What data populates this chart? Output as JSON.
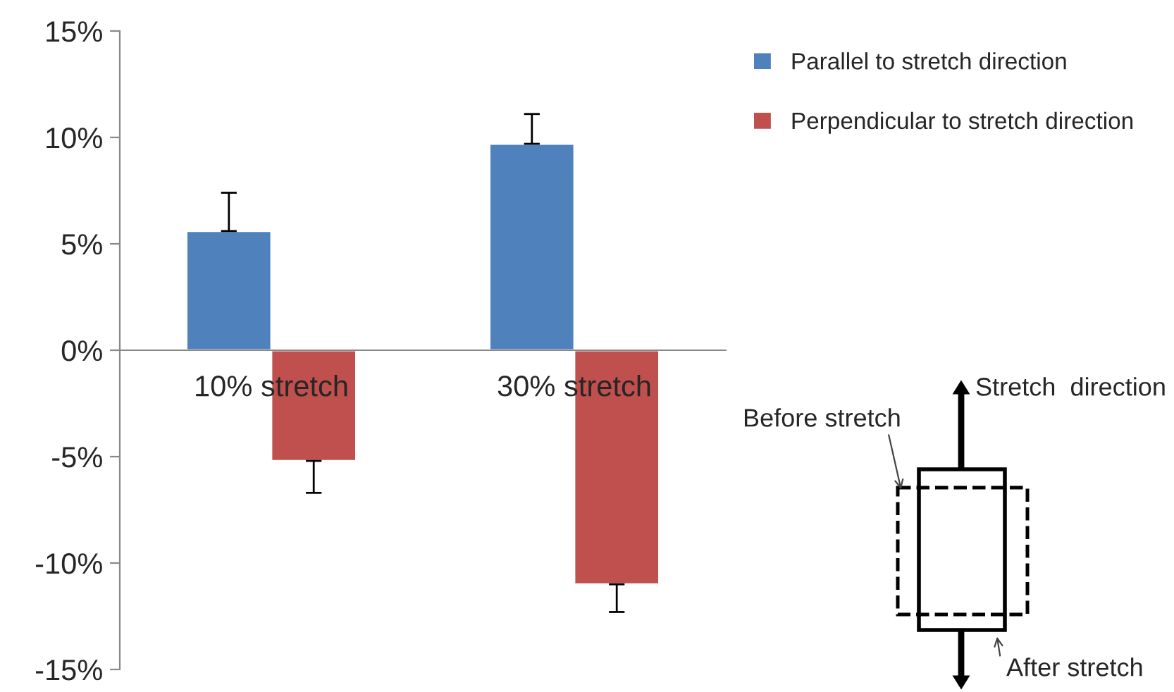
{
  "chart_data": {
    "type": "bar",
    "categories": [
      "10% stretch",
      "30% stretch"
    ],
    "series": [
      {
        "name": "Parallel to stretch direction",
        "color": "#4f81bd",
        "values": [
          5.6,
          9.7
        ],
        "errors": [
          [
            5.6,
            7.4
          ],
          [
            9.7,
            11.1
          ]
        ]
      },
      {
        "name": "Perpendicular to stretch direction",
        "color": "#c0504d",
        "values": [
          -5.2,
          -11.0
        ],
        "errors": [
          [
            -6.7,
            -5.2
          ],
          [
            -12.3,
            -11.0
          ]
        ]
      }
    ],
    "ylim": [
      -15,
      15
    ],
    "yticks": [
      {
        "value": -15,
        "label": "-15%"
      },
      {
        "value": -10,
        "label": "-10%"
      },
      {
        "value": -5,
        "label": "-5%"
      },
      {
        "value": 0,
        "label": "0%"
      },
      {
        "value": 5,
        "label": "5%"
      },
      {
        "value": 10,
        "label": "10%"
      },
      {
        "value": 15,
        "label": "15%"
      }
    ],
    "grid": false,
    "legend": "right",
    "annotations": [
      "Stretch  direction",
      "Before stretch",
      "After stretch"
    ]
  }
}
